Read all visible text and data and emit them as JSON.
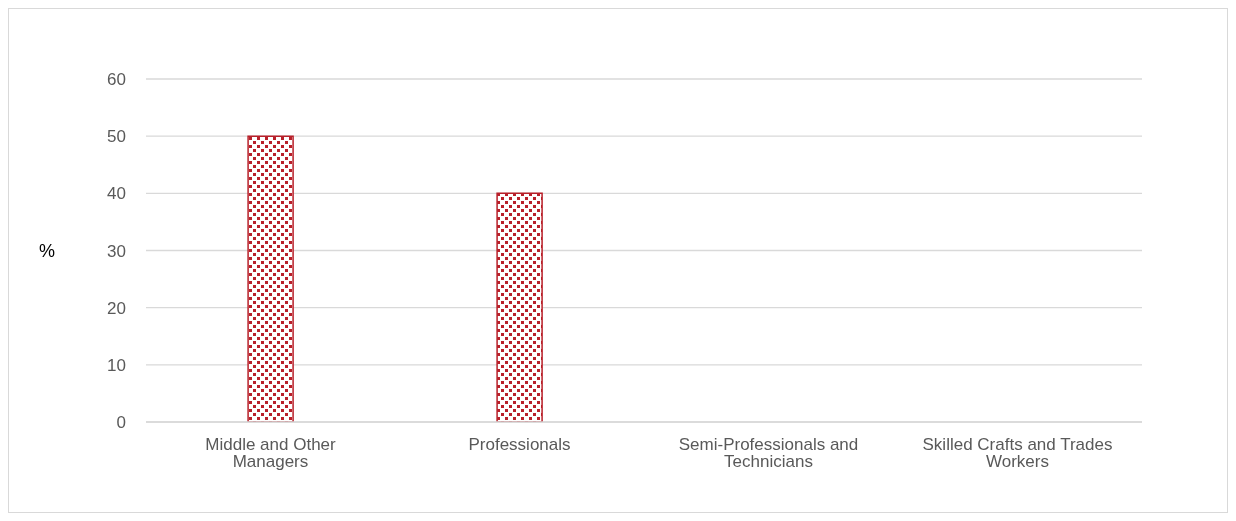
{
  "chart_data": {
    "type": "bar",
    "categories": [
      "Middle and Other Managers",
      "Professionals",
      "Semi-Professionals and Technicians",
      "Skilled Crafts and Trades Workers"
    ],
    "series": [
      {
        "color": "#b8202a",
        "values": [
          50,
          40,
          0,
          0
        ]
      }
    ],
    "ylabel": "%",
    "ylim": [
      0,
      60
    ],
    "yticks": [
      0,
      10,
      20,
      30,
      40,
      50,
      60
    ],
    "grid": "y"
  }
}
